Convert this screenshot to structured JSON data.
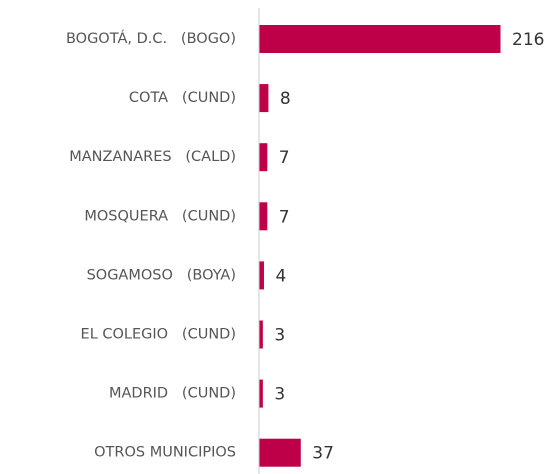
{
  "chart_data": {
    "type": "hbar",
    "categories": [
      "BOGOTÁ, D.C.   (BOGO)",
      "COTA   (CUND)",
      "MANZANARES   (CALD)",
      "MOSQUERA   (CUND)",
      "SOGAMOSO   (BOYA)",
      "EL COLEGIO   (CUND)",
      "MADRID   (CUND)",
      "OTROS MUNICIPIOS"
    ],
    "values": [
      216,
      8,
      7,
      7,
      4,
      3,
      3,
      37
    ],
    "color": "#be0049"
  }
}
